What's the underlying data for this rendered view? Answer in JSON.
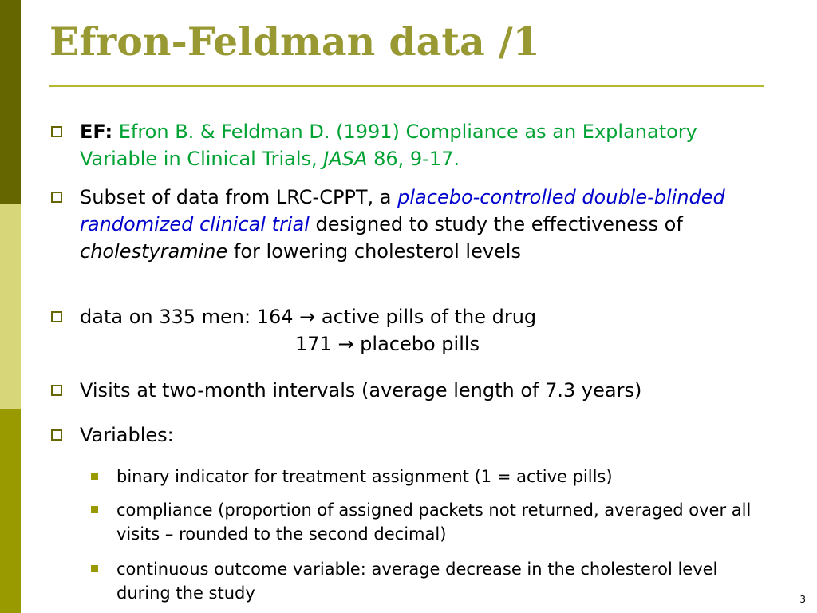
{
  "slide": {
    "title": "Efron-Feldman data /1",
    "page_number": "3",
    "colors": {
      "title": "#999933",
      "sidebar_dark": "#666600",
      "sidebar_light": "#D7D77A",
      "sidebar_mid": "#999900",
      "citation": "#00A233",
      "emphasis": "#0000CC"
    },
    "bullets": {
      "ef": {
        "label": "EF:",
        "citation_1": "Efron B. & Feldman D. (1991) Compliance as an Explanatory Variable in Clinical Trials,",
        "journal": "JASA",
        "citation_2": "86, 9-17."
      },
      "subset": {
        "text_1": "Subset of data from LRC-CPPT, a",
        "emphasis": "placebo-controlled double-blinded randomized clinical trial",
        "text_2": "designed to study the effectiveness of",
        "drug": "cholestyramine",
        "text_3": "for lowering cholesterol levels"
      },
      "data": {
        "line_1": "data on 335 men: 164 → active pills of the drug",
        "line_2": "171 → placebo pills"
      },
      "visits": {
        "text": "Visits at two-month intervals (average length of 7.3 years)"
      },
      "variables": {
        "text": "Variables:",
        "items": [
          "binary indicator for treatment assignment (1 = active pills)",
          "compliance (proportion of assigned packets not returned, averaged over all visits – rounded to the second decimal)",
          "continuous outcome variable: average decrease in the cholesterol level during the study"
        ]
      }
    }
  }
}
